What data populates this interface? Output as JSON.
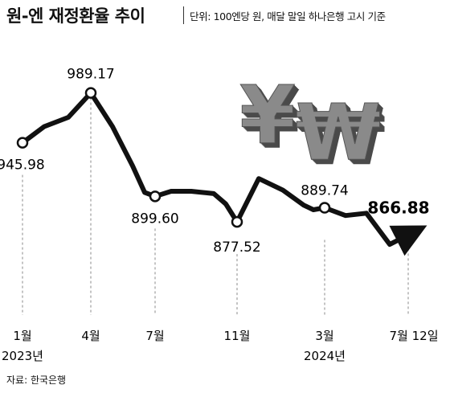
{
  "header": {
    "title": "원-엔 재정환율 추이",
    "subtitle": "단위: 100엔당 원, 매달 말일 하나은행 고시 기준"
  },
  "source": "자료: 한국은행",
  "decoration": {
    "name": "yen-won-3d-icon",
    "glyphs": [
      "¥",
      "₩"
    ],
    "color": "#8a8a8a"
  },
  "chart_data": {
    "type": "line",
    "series": [
      {
        "values": [
          945.98,
          960,
          968,
          989.17,
          960,
          926,
          903,
          899.6,
          904,
          904,
          902,
          893,
          877.52,
          915,
          905,
          892,
          888,
          889.74,
          883,
          885,
          858,
          866.88
        ]
      }
    ],
    "labeled_points": [
      {
        "index": 0,
        "label": "945.98",
        "x_tick": "1월"
      },
      {
        "index": 3,
        "label": "989.17",
        "x_tick": "4월"
      },
      {
        "index": 7,
        "label": "899.60",
        "x_tick": "7월"
      },
      {
        "index": 12,
        "label": "877.52",
        "x_tick": "11월"
      },
      {
        "index": 17,
        "label": "889.74",
        "x_tick": "3월"
      },
      {
        "index": 21,
        "label": "866.88",
        "x_tick": "7월 12일"
      }
    ],
    "years": [
      {
        "tick": 0,
        "label": "2023년"
      },
      {
        "tick": 4,
        "label": "2024년"
      }
    ],
    "ylim": [
      840,
      1000
    ],
    "grid": false,
    "line_color": "#111111"
  }
}
